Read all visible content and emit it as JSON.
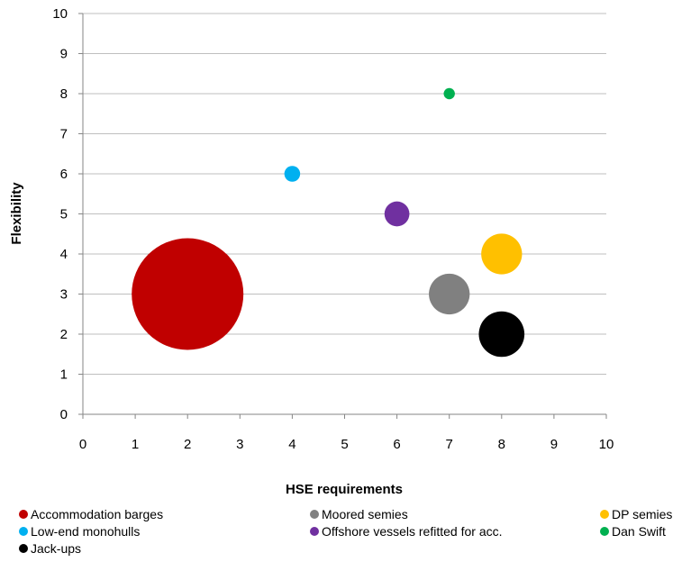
{
  "chart_data": {
    "type": "scatter",
    "title": "",
    "xlabel": "HSE requirements",
    "ylabel": "Flexibility",
    "xlim": [
      0,
      10
    ],
    "ylim": [
      0,
      10
    ],
    "x_ticks": [
      "0",
      "1",
      "2",
      "3",
      "4",
      "5",
      "6",
      "7",
      "8",
      "9",
      "10"
    ],
    "y_ticks": [
      "0",
      "1",
      "2",
      "3",
      "4",
      "5",
      "6",
      "7",
      "8",
      "9",
      "10"
    ],
    "grid": "horizontal",
    "legend_position": "bottom",
    "series": [
      {
        "name": "Accommodation barges",
        "x": 2,
        "y": 3,
        "size": 30,
        "color": "#c00000"
      },
      {
        "name": "Moored semies",
        "x": 7,
        "y": 3,
        "size": 4,
        "color": "#808080"
      },
      {
        "name": "DP semies",
        "x": 8,
        "y": 4,
        "size": 4,
        "color": "#ffc000"
      },
      {
        "name": "Low-end monohulls",
        "x": 4,
        "y": 6,
        "size": 0.6,
        "color": "#00b0f0"
      },
      {
        "name": "Offshore vessels refitted for acc.",
        "x": 6,
        "y": 5,
        "size": 1.5,
        "color": "#7030a0"
      },
      {
        "name": "Dan Swift",
        "x": 7,
        "y": 8,
        "size": 0.3,
        "color": "#00b050"
      },
      {
        "name": "Jack-ups",
        "x": 8,
        "y": 2,
        "size": 5,
        "color": "#000000"
      }
    ]
  }
}
